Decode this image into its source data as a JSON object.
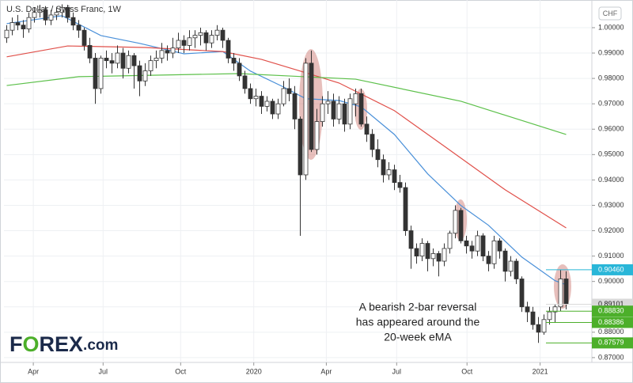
{
  "chart_data": {
    "type": "candlestick",
    "title": "U.S. Dollar / Swiss Franc, 1W",
    "currency": "CHF",
    "annotation": [
      "A bearish 2-bar reversal",
      "has appeared around the",
      "20-week eMA"
    ],
    "logo": [
      "F",
      "O",
      "REX",
      ".com"
    ],
    "up_color": "#ffffff",
    "down_color": "#333333",
    "wick_color": "#333333",
    "xlim": [
      -0.5,
      105.64
    ],
    "ylim": [
      0.8681,
      1.0109
    ],
    "xticks": [
      {
        "value": 4.8,
        "label": "Apr"
      },
      {
        "value": 17.4,
        "label": "Jul"
      },
      {
        "value": 31.4,
        "label": "Oct"
      },
      {
        "value": 44.6,
        "label": "2020"
      },
      {
        "value": 57.7,
        "label": "Apr"
      },
      {
        "value": 70.4,
        "label": "Jul"
      },
      {
        "value": 83.1,
        "label": "Oct"
      },
      {
        "value": 96.3,
        "label": "2021"
      }
    ],
    "yticks": [
      {
        "value": 0.87,
        "label": "0.87000"
      },
      {
        "value": 0.88,
        "label": "0.88000"
      },
      {
        "value": 0.89,
        "label": "0.89000"
      },
      {
        "value": 0.9,
        "label": "0.90000"
      },
      {
        "value": 0.91,
        "label": "0.91000"
      },
      {
        "value": 0.92,
        "label": "0.92000"
      },
      {
        "value": 0.93,
        "label": "0.93000"
      },
      {
        "value": 0.94,
        "label": "0.94000"
      },
      {
        "value": 0.95,
        "label": "0.95000"
      },
      {
        "value": 0.96,
        "label": "0.96000"
      },
      {
        "value": 0.97,
        "label": "0.97000"
      },
      {
        "value": 0.98,
        "label": "0.98000"
      },
      {
        "value": 0.99,
        "label": "0.99000"
      },
      {
        "value": 1.0,
        "label": "1.00000"
      }
    ],
    "grid": true,
    "candles": [
      [
        0.996,
        1.001,
        0.994,
        0.999
      ],
      [
        0.999,
        1.004,
        0.997,
        1.002
      ],
      [
        1.002,
        1.005,
        0.999,
        1.001
      ],
      [
        1.001,
        1.003,
        0.996,
        0.9995
      ],
      [
        0.9995,
        1.006,
        0.998,
        1.004
      ],
      [
        1.004,
        1.008,
        1.002,
        1.006
      ],
      [
        1.006,
        1.009,
        1.004,
        1.007
      ],
      [
        1.007,
        1.0085,
        1.001,
        1.003
      ],
      [
        1.003,
        1.007,
        1.001,
        1.005
      ],
      [
        1.005,
        1.008,
        1.003,
        1.006
      ],
      [
        1.006,
        1.0092,
        1.004,
        1.008
      ],
      [
        1.008,
        1.009,
        1.002,
        1.004
      ],
      [
        1.004,
        1.006,
        0.999,
        1.001
      ],
      [
        1.001,
        1.003,
        0.996,
        0.999
      ],
      [
        0.999,
        1.0,
        0.991,
        0.993
      ],
      [
        0.993,
        0.996,
        0.986,
        0.988
      ],
      [
        0.988,
        0.99,
        0.97,
        0.976
      ],
      [
        0.976,
        0.989,
        0.974,
        0.988
      ],
      [
        0.988,
        0.991,
        0.984,
        0.987
      ],
      [
        0.987,
        0.99,
        0.982,
        0.986
      ],
      [
        0.986,
        0.993,
        0.984,
        0.99
      ],
      [
        0.99,
        0.992,
        0.98,
        0.984
      ],
      [
        0.984,
        0.991,
        0.982,
        0.989
      ],
      [
        0.989,
        0.99,
        0.976,
        0.985
      ],
      [
        0.985,
        0.987,
        0.973,
        0.979
      ],
      [
        0.979,
        0.986,
        0.977,
        0.983
      ],
      [
        0.983,
        0.989,
        0.981,
        0.987
      ],
      [
        0.987,
        0.991,
        0.984,
        0.988
      ],
      [
        0.988,
        0.994,
        0.986,
        0.991
      ],
      [
        0.991,
        0.993,
        0.987,
        0.99
      ],
      [
        0.99,
        0.996,
        0.988,
        0.992
      ],
      [
        0.992,
        0.998,
        0.99,
        0.995
      ],
      [
        0.995,
        0.997,
        0.99,
        0.993
      ],
      [
        0.993,
        0.999,
        0.991,
        0.996
      ],
      [
        0.996,
        0.999,
        0.992,
        0.997
      ],
      [
        0.997,
        1.0,
        0.993,
        0.998
      ],
      [
        0.998,
        0.999,
        0.991,
        0.994
      ],
      [
        0.994,
        0.999,
        0.992,
        0.997
      ],
      [
        0.997,
        1.001,
        0.995,
        0.999
      ],
      [
        0.999,
        1.0,
        0.992,
        0.995
      ],
      [
        0.995,
        0.996,
        0.986,
        0.988
      ],
      [
        0.988,
        0.99,
        0.983,
        0.986
      ],
      [
        0.986,
        0.988,
        0.979,
        0.981
      ],
      [
        0.981,
        0.983,
        0.974,
        0.976
      ],
      [
        0.976,
        0.978,
        0.97,
        0.972
      ],
      [
        0.972,
        0.976,
        0.969,
        0.973
      ],
      [
        0.973,
        0.975,
        0.966,
        0.969
      ],
      [
        0.969,
        0.973,
        0.967,
        0.971
      ],
      [
        0.971,
        0.972,
        0.964,
        0.966
      ],
      [
        0.966,
        0.972,
        0.964,
        0.97
      ],
      [
        0.97,
        0.979,
        0.969,
        0.976
      ],
      [
        0.976,
        0.98,
        0.971,
        0.974
      ],
      [
        0.974,
        0.977,
        0.96,
        0.964
      ],
      [
        0.964,
        0.965,
        0.918,
        0.942
      ],
      [
        0.942,
        0.988,
        0.94,
        0.986
      ],
      [
        0.986,
        0.991,
        0.951,
        0.952
      ],
      [
        0.952,
        0.968,
        0.95,
        0.963
      ],
      [
        0.963,
        0.973,
        0.961,
        0.97
      ],
      [
        0.97,
        0.975,
        0.966,
        0.971
      ],
      [
        0.971,
        0.974,
        0.961,
        0.964
      ],
      [
        0.964,
        0.973,
        0.962,
        0.97
      ],
      [
        0.97,
        0.972,
        0.959,
        0.962
      ],
      [
        0.962,
        0.974,
        0.96,
        0.972
      ],
      [
        0.97,
        0.976,
        0.965,
        0.974
      ],
      [
        0.974,
        0.976,
        0.961,
        0.962
      ],
      [
        0.962,
        0.965,
        0.955,
        0.958
      ],
      [
        0.958,
        0.96,
        0.949,
        0.952
      ],
      [
        0.952,
        0.956,
        0.945,
        0.948
      ],
      [
        0.948,
        0.95,
        0.939,
        0.942
      ],
      [
        0.942,
        0.947,
        0.94,
        0.944
      ],
      [
        0.944,
        0.946,
        0.936,
        0.939
      ],
      [
        0.939,
        0.942,
        0.935,
        0.937
      ],
      [
        0.937,
        0.939,
        0.918,
        0.92
      ],
      [
        0.92,
        0.922,
        0.905,
        0.913
      ],
      [
        0.913,
        0.915,
        0.907,
        0.91
      ],
      [
        0.91,
        0.917,
        0.908,
        0.915
      ],
      [
        0.915,
        0.916,
        0.904,
        0.909
      ],
      [
        0.909,
        0.913,
        0.906,
        0.911
      ],
      [
        0.911,
        0.912,
        0.902,
        0.908
      ],
      [
        0.908,
        0.915,
        0.906,
        0.913
      ],
      [
        0.913,
        0.92,
        0.911,
        0.919
      ],
      [
        0.919,
        0.93,
        0.917,
        0.928
      ],
      [
        0.928,
        0.929,
        0.915,
        0.916
      ],
      [
        0.916,
        0.918,
        0.911,
        0.914
      ],
      [
        0.914,
        0.916,
        0.909,
        0.912
      ],
      [
        0.912,
        0.92,
        0.91,
        0.918
      ],
      [
        0.918,
        0.919,
        0.908,
        0.91
      ],
      [
        0.91,
        0.912,
        0.904,
        0.907
      ],
      [
        0.907,
        0.918,
        0.905,
        0.916
      ],
      [
        0.916,
        0.917,
        0.909,
        0.912
      ],
      [
        0.912,
        0.913,
        0.9,
        0.904
      ],
      [
        0.904,
        0.91,
        0.902,
        0.908
      ],
      [
        0.908,
        0.909,
        0.899,
        0.901
      ],
      [
        0.901,
        0.902,
        0.888,
        0.89
      ],
      [
        0.89,
        0.892,
        0.884,
        0.888
      ],
      [
        0.888,
        0.89,
        0.881,
        0.883
      ],
      [
        0.883,
        0.886,
        0.8758,
        0.88
      ],
      [
        0.88,
        0.887,
        0.879,
        0.885
      ],
      [
        0.885,
        0.89,
        0.883,
        0.888
      ],
      [
        0.888,
        0.891,
        0.8839,
        0.89
      ],
      [
        0.89,
        0.9046,
        0.8883,
        0.901
      ],
      [
        0.901,
        0.904,
        0.889,
        0.891
      ]
    ],
    "series": [
      {
        "color": "#4a90d9",
        "x": [
          0,
          10,
          17,
          24,
          32,
          39,
          44,
          50,
          54,
          60,
          64,
          70,
          76,
          82,
          87,
          93,
          99,
          101
        ],
        "values": [
          1.0016,
          1.0047,
          0.9969,
          0.9938,
          0.9897,
          0.9906,
          0.9829,
          0.9766,
          0.972,
          0.9713,
          0.9688,
          0.9579,
          0.9424,
          0.9299,
          0.9221,
          0.9096,
          0.9003,
          0.8987
        ]
      },
      {
        "color": "#e0504a",
        "x": [
          0,
          11,
          25,
          39,
          46,
          53,
          60,
          70,
          79,
          90,
          101
        ],
        "values": [
          0.9885,
          0.9928,
          0.9922,
          0.9906,
          0.9875,
          0.9829,
          0.9782,
          0.9673,
          0.9533,
          0.9361,
          0.9211
        ]
      },
      {
        "color": "#5cc04a",
        "x": [
          0,
          13,
          42,
          63,
          82,
          101
        ],
        "values": [
          0.9772,
          0.9807,
          0.9819,
          0.9797,
          0.971,
          0.9579
        ]
      }
    ],
    "price_labels": [
      {
        "value": 0.9046,
        "label": "0.90460",
        "color": "#29b6d8"
      },
      {
        "value": 0.89101,
        "label": "0.89101",
        "color": "#d9d9d9"
      },
      {
        "value": 0.8883,
        "label": "0.88830",
        "color": "#4caf2a"
      },
      {
        "value": 0.88386,
        "label": "0.88386",
        "color": "#4caf2a"
      },
      {
        "value": 0.87579,
        "label": "0.87579",
        "color": "#4caf2a"
      }
    ]
  }
}
